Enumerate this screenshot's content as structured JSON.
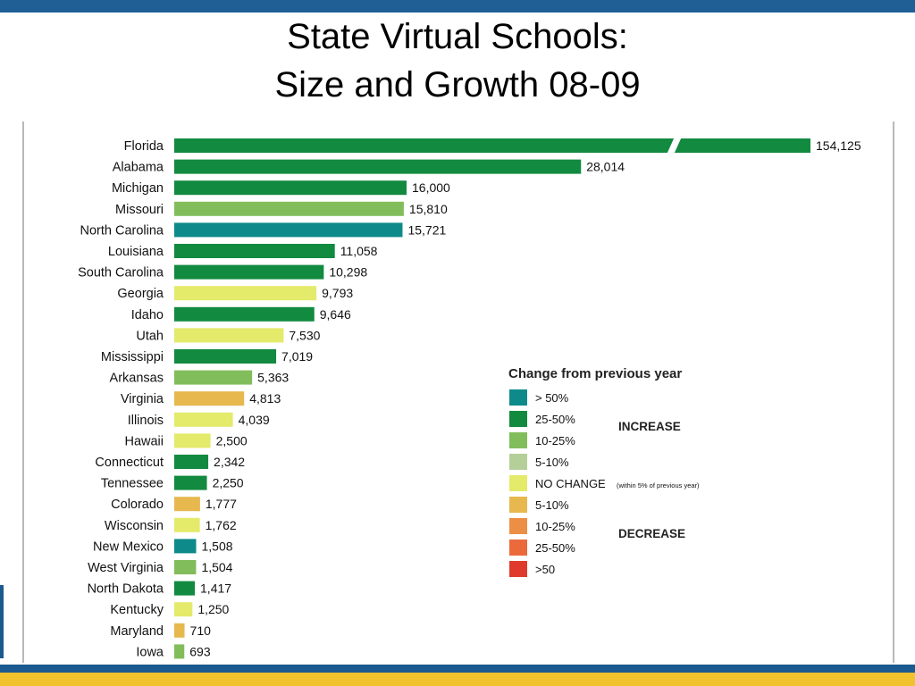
{
  "slide": {
    "title_line1": "State Virtual Schools:",
    "title_line2": "Size and Growth 08-09"
  },
  "colors": {
    "top_band": "#1f5f95",
    "bottom_band": "#1a5a8e",
    "bottom_stripe": "#f2c12e"
  },
  "chart_data": {
    "type": "bar",
    "orientation": "horizontal",
    "categories": [
      "Florida",
      "Alabama",
      "Michigan",
      "Missouri",
      "North Carolina",
      "Louisiana",
      "South Carolina",
      "Georgia",
      "Idaho",
      "Utah",
      "Mississippi",
      "Arkansas",
      "Virginia",
      "Illinois",
      "Hawaii",
      "Connecticut",
      "Tennessee",
      "Colorado",
      "Wisconsin",
      "New Mexico",
      "West Virginia",
      "North Dakota",
      "Kentucky",
      "Maryland",
      "Iowa"
    ],
    "values": [
      154125,
      28014,
      16000,
      15810,
      15721,
      11058,
      10298,
      9793,
      9646,
      7530,
      7019,
      5363,
      4813,
      4039,
      2500,
      2342,
      2250,
      1777,
      1762,
      1508,
      1504,
      1417,
      1250,
      710,
      693
    ],
    "value_labels": [
      "154,125",
      "28,014",
      "16,000",
      "15,810",
      "15,721",
      "11,058",
      "10,298",
      "9,793",
      "9,646",
      "7,530",
      "7,019",
      "5,363",
      "4,813",
      "4,039",
      "2,500",
      "2,342",
      "2,250",
      "1,777",
      "1,762",
      "1,508",
      "1,504",
      "1,417",
      "1,250",
      "710",
      "693"
    ],
    "change_category": [
      "25-50%",
      "25-50%",
      "25-50%",
      "10-25%",
      "> 50%",
      "25-50%",
      "25-50%",
      "NO CHANGE",
      "25-50%",
      "NO CHANGE",
      "25-50%",
      "10-25%",
      "5-10% decrease",
      "NO CHANGE",
      "NO CHANGE",
      "25-50%",
      "25-50%",
      "5-10% decrease",
      "NO CHANGE",
      "> 50%",
      "10-25%",
      "25-50%",
      "NO CHANGE",
      "5-10% decrease",
      "10-25%"
    ],
    "bar_colors": [
      "#128a40",
      "#128a40",
      "#128a40",
      "#82bd5c",
      "#0e8a8a",
      "#128a40",
      "#128a40",
      "#e4ea6a",
      "#128a40",
      "#e4ea6a",
      "#128a40",
      "#82bd5c",
      "#e6b84e",
      "#e4ea6a",
      "#e4ea6a",
      "#128a40",
      "#128a40",
      "#e6b84e",
      "#e4ea6a",
      "#0e8a8a",
      "#82bd5c",
      "#128a40",
      "#e4ea6a",
      "#e6b84e",
      "#82bd5c"
    ],
    "axis_break": {
      "category": "Florida",
      "shown": true
    },
    "grid": false,
    "legend": {
      "title": "Change from previous year",
      "placement": "right",
      "items": [
        {
          "label": "> 50%",
          "color": "#0e8a8a"
        },
        {
          "label": "25-50%",
          "color": "#128a40"
        },
        {
          "label": "10-25%",
          "color": "#82bd5c"
        },
        {
          "label": "5-10%",
          "color": "#b5cf98"
        },
        {
          "label": "NO CHANGE",
          "color": "#e4ea6a",
          "note": "(within 5% of previous year)"
        },
        {
          "label": "5-10%",
          "color": "#e6b84e"
        },
        {
          "label": "10-25%",
          "color": "#ec8f45"
        },
        {
          "label": "25-50%",
          "color": "#ea6a3c"
        },
        {
          "label": ">50",
          "color": "#e03a2c"
        }
      ],
      "increase_label": "INCREASE",
      "decrease_label": "DECREASE"
    }
  }
}
